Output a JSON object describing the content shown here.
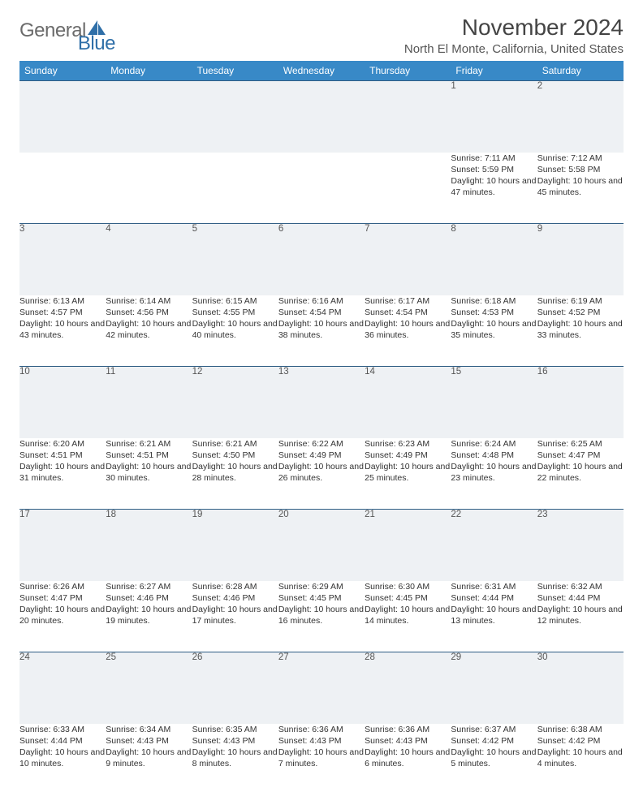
{
  "branding": {
    "logo_word1": "General",
    "logo_word2": "Blue",
    "logo_word1_color": "#6b6b6b",
    "logo_word2_color": "#2f6fa8",
    "sail_color": "#2f6fa8"
  },
  "header": {
    "month_title": "November 2024",
    "location": "North El Monte, California, United States",
    "title_color": "#444444",
    "location_color": "#555555",
    "title_fontsize": 28,
    "location_fontsize": 15
  },
  "calendar": {
    "type": "table",
    "header_bg": "#3889c7",
    "header_fg": "#ffffff",
    "daynum_bg": "#eef1f4",
    "daynum_border_top": "#2f5d84",
    "cell_fg": "#333333",
    "header_fontsize": 12,
    "daynum_fontsize": 11.5,
    "cell_fontsize": 10.5,
    "columns": [
      "Sunday",
      "Monday",
      "Tuesday",
      "Wednesday",
      "Thursday",
      "Friday",
      "Saturday"
    ],
    "weeks": [
      [
        null,
        null,
        null,
        null,
        null,
        {
          "n": "1",
          "sunrise": "7:11 AM",
          "sunset": "5:59 PM",
          "daylight": "10 hours and 47 minutes."
        },
        {
          "n": "2",
          "sunrise": "7:12 AM",
          "sunset": "5:58 PM",
          "daylight": "10 hours and 45 minutes."
        }
      ],
      [
        {
          "n": "3",
          "sunrise": "6:13 AM",
          "sunset": "4:57 PM",
          "daylight": "10 hours and 43 minutes."
        },
        {
          "n": "4",
          "sunrise": "6:14 AM",
          "sunset": "4:56 PM",
          "daylight": "10 hours and 42 minutes."
        },
        {
          "n": "5",
          "sunrise": "6:15 AM",
          "sunset": "4:55 PM",
          "daylight": "10 hours and 40 minutes."
        },
        {
          "n": "6",
          "sunrise": "6:16 AM",
          "sunset": "4:54 PM",
          "daylight": "10 hours and 38 minutes."
        },
        {
          "n": "7",
          "sunrise": "6:17 AM",
          "sunset": "4:54 PM",
          "daylight": "10 hours and 36 minutes."
        },
        {
          "n": "8",
          "sunrise": "6:18 AM",
          "sunset": "4:53 PM",
          "daylight": "10 hours and 35 minutes."
        },
        {
          "n": "9",
          "sunrise": "6:19 AM",
          "sunset": "4:52 PM",
          "daylight": "10 hours and 33 minutes."
        }
      ],
      [
        {
          "n": "10",
          "sunrise": "6:20 AM",
          "sunset": "4:51 PM",
          "daylight": "10 hours and 31 minutes."
        },
        {
          "n": "11",
          "sunrise": "6:21 AM",
          "sunset": "4:51 PM",
          "daylight": "10 hours and 30 minutes."
        },
        {
          "n": "12",
          "sunrise": "6:21 AM",
          "sunset": "4:50 PM",
          "daylight": "10 hours and 28 minutes."
        },
        {
          "n": "13",
          "sunrise": "6:22 AM",
          "sunset": "4:49 PM",
          "daylight": "10 hours and 26 minutes."
        },
        {
          "n": "14",
          "sunrise": "6:23 AM",
          "sunset": "4:49 PM",
          "daylight": "10 hours and 25 minutes."
        },
        {
          "n": "15",
          "sunrise": "6:24 AM",
          "sunset": "4:48 PM",
          "daylight": "10 hours and 23 minutes."
        },
        {
          "n": "16",
          "sunrise": "6:25 AM",
          "sunset": "4:47 PM",
          "daylight": "10 hours and 22 minutes."
        }
      ],
      [
        {
          "n": "17",
          "sunrise": "6:26 AM",
          "sunset": "4:47 PM",
          "daylight": "10 hours and 20 minutes."
        },
        {
          "n": "18",
          "sunrise": "6:27 AM",
          "sunset": "4:46 PM",
          "daylight": "10 hours and 19 minutes."
        },
        {
          "n": "19",
          "sunrise": "6:28 AM",
          "sunset": "4:46 PM",
          "daylight": "10 hours and 17 minutes."
        },
        {
          "n": "20",
          "sunrise": "6:29 AM",
          "sunset": "4:45 PM",
          "daylight": "10 hours and 16 minutes."
        },
        {
          "n": "21",
          "sunrise": "6:30 AM",
          "sunset": "4:45 PM",
          "daylight": "10 hours and 14 minutes."
        },
        {
          "n": "22",
          "sunrise": "6:31 AM",
          "sunset": "4:44 PM",
          "daylight": "10 hours and 13 minutes."
        },
        {
          "n": "23",
          "sunrise": "6:32 AM",
          "sunset": "4:44 PM",
          "daylight": "10 hours and 12 minutes."
        }
      ],
      [
        {
          "n": "24",
          "sunrise": "6:33 AM",
          "sunset": "4:44 PM",
          "daylight": "10 hours and 10 minutes."
        },
        {
          "n": "25",
          "sunrise": "6:34 AM",
          "sunset": "4:43 PM",
          "daylight": "10 hours and 9 minutes."
        },
        {
          "n": "26",
          "sunrise": "6:35 AM",
          "sunset": "4:43 PM",
          "daylight": "10 hours and 8 minutes."
        },
        {
          "n": "27",
          "sunrise": "6:36 AM",
          "sunset": "4:43 PM",
          "daylight": "10 hours and 7 minutes."
        },
        {
          "n": "28",
          "sunrise": "6:36 AM",
          "sunset": "4:43 PM",
          "daylight": "10 hours and 6 minutes."
        },
        {
          "n": "29",
          "sunrise": "6:37 AM",
          "sunset": "4:42 PM",
          "daylight": "10 hours and 5 minutes."
        },
        {
          "n": "30",
          "sunrise": "6:38 AM",
          "sunset": "4:42 PM",
          "daylight": "10 hours and 4 minutes."
        }
      ]
    ],
    "labels": {
      "sunrise_prefix": "Sunrise: ",
      "sunset_prefix": "Sunset: ",
      "daylight_prefix": "Daylight: "
    }
  }
}
